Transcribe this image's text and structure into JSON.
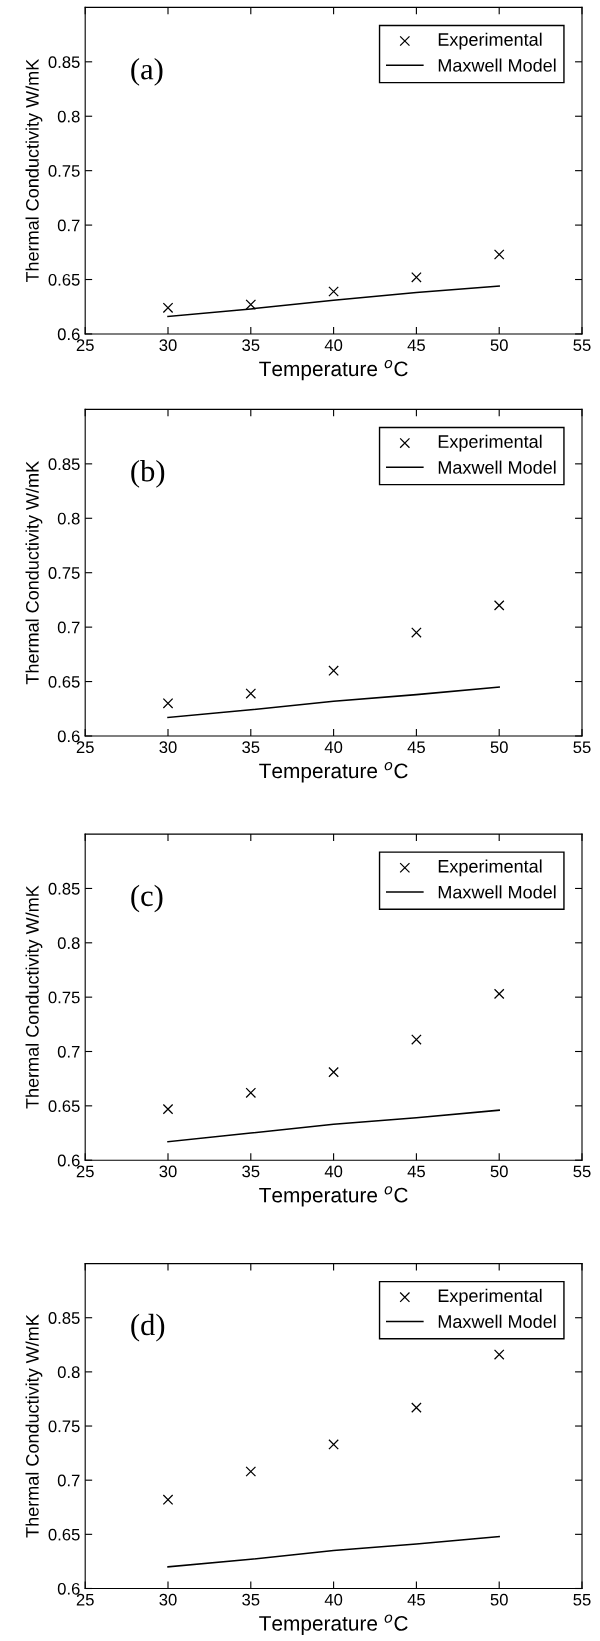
{
  "chart_data": [
    {
      "type": "scatter",
      "annotations": [
        "(a)"
      ],
      "xlabel": "Temperature $^{o}$C",
      "ylabel": "Thermal Conductivity W/mK",
      "xlim": [
        25,
        55
      ],
      "ylim": [
        0.6,
        0.9
      ],
      "xticks": [
        25,
        30,
        35,
        40,
        45,
        50,
        55
      ],
      "yticks": [
        0.6,
        0.65,
        0.7,
        0.75,
        0.8,
        0.85
      ],
      "legend": "top right",
      "grid": false,
      "x": [
        30,
        35,
        40,
        45,
        50
      ],
      "series": [
        {
          "name": "Experimental",
          "marker": "cross",
          "color": "#000000",
          "values": [
            0.624,
            0.627,
            0.639,
            0.652,
            0.673
          ]
        },
        {
          "name": "Maxwell Model",
          "type": "line",
          "marker": "none",
          "line_style": "solid",
          "color": "#000000",
          "values": [
            0.616,
            0.623,
            0.631,
            0.638,
            0.644
          ]
        }
      ]
    },
    {
      "type": "scatter",
      "annotations": [
        "(b)"
      ],
      "xlabel": "Temperature $^{o}$C",
      "ylabel": "Thermal Conductivity W/mK",
      "xlim": [
        25,
        55
      ],
      "ylim": [
        0.6,
        0.9
      ],
      "xticks": [
        25,
        30,
        35,
        40,
        45,
        50,
        55
      ],
      "yticks": [
        0.6,
        0.65,
        0.7,
        0.75,
        0.8,
        0.85
      ],
      "legend": "top right",
      "grid": false,
      "x": [
        30,
        35,
        40,
        45,
        50
      ],
      "series": [
        {
          "name": "Experimental",
          "marker": "cross",
          "color": "#000000",
          "values": [
            0.63,
            0.639,
            0.66,
            0.695,
            0.72
          ]
        },
        {
          "name": "Maxwell Model",
          "type": "line",
          "marker": "none",
          "line_style": "solid",
          "color": "#000000",
          "values": [
            0.617,
            0.624,
            0.632,
            0.638,
            0.645
          ]
        }
      ]
    },
    {
      "type": "scatter",
      "annotations": [
        "(c)"
      ],
      "xlabel": "Temperature $^{o}$C",
      "ylabel": "Thermal Conductivity W/mK",
      "xlim": [
        25,
        55
      ],
      "ylim": [
        0.6,
        0.9
      ],
      "xticks": [
        25,
        30,
        35,
        40,
        45,
        50,
        55
      ],
      "yticks": [
        0.6,
        0.65,
        0.7,
        0.75,
        0.8,
        0.85
      ],
      "legend": "top right",
      "grid": false,
      "x": [
        30,
        35,
        40,
        45,
        50
      ],
      "series": [
        {
          "name": "Experimental",
          "marker": "cross",
          "color": "#000000",
          "values": [
            0.647,
            0.662,
            0.681,
            0.711,
            0.753
          ]
        },
        {
          "name": "Maxwell Model",
          "type": "line",
          "marker": "none",
          "line_style": "solid",
          "color": "#000000",
          "values": [
            0.617,
            0.625,
            0.633,
            0.639,
            0.646
          ]
        }
      ]
    },
    {
      "type": "scatter",
      "annotations": [
        "(d)"
      ],
      "xlabel": "Temperature $^{o}$C",
      "ylabel": "Thermal Conductivity W/mK",
      "xlim": [
        25,
        55
      ],
      "ylim": [
        0.6,
        0.9
      ],
      "xticks": [
        25,
        30,
        35,
        40,
        45,
        50,
        55
      ],
      "yticks": [
        0.6,
        0.65,
        0.7,
        0.75,
        0.8,
        0.85
      ],
      "legend": "top right",
      "grid": false,
      "x": [
        30,
        35,
        40,
        45,
        50
      ],
      "series": [
        {
          "name": "Experimental",
          "marker": "cross",
          "color": "#000000",
          "values": [
            0.682,
            0.708,
            0.733,
            0.767,
            0.816
          ]
        },
        {
          "name": "Maxwell Model",
          "type": "line",
          "marker": "none",
          "line_style": "solid",
          "color": "#000000",
          "values": [
            0.62,
            0.627,
            0.635,
            0.641,
            0.648
          ]
        }
      ]
    }
  ]
}
